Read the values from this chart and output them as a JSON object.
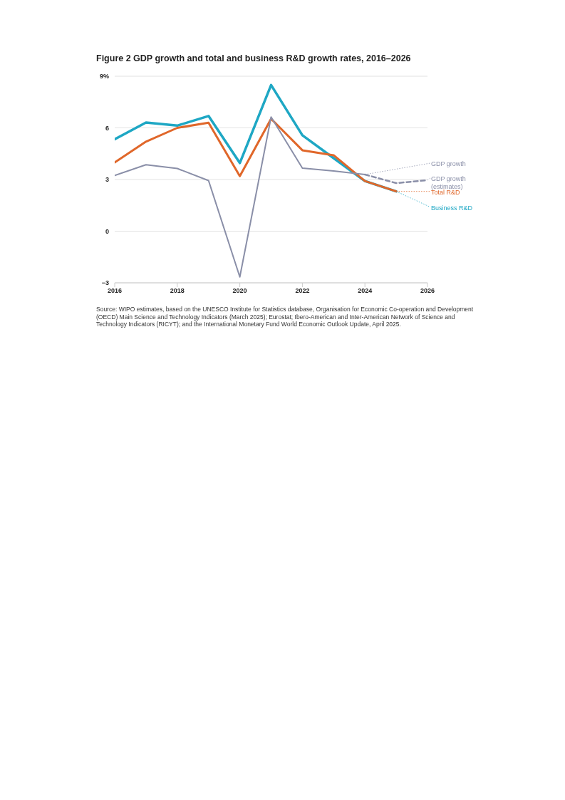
{
  "chart_data": {
    "type": "line",
    "title": "Figure 2 GDP growth and total and business R&D growth rates, 2016–2026",
    "x": [
      2016,
      2017,
      2018,
      2019,
      2020,
      2021,
      2022,
      2023,
      2024,
      2025,
      2026
    ],
    "series": [
      {
        "name": "GDP growth",
        "color": "#8a8fa8",
        "values": [
          3.24,
          3.86,
          3.64,
          2.94,
          -2.66,
          6.63,
          3.66,
          3.5,
          3.29,
          null,
          null
        ]
      },
      {
        "name": "GDP growth (estimates)",
        "color": "#8a8fa8",
        "line_style": "dashed",
        "values": [
          null,
          null,
          null,
          null,
          null,
          null,
          null,
          null,
          3.29,
          2.79,
          2.96
        ]
      },
      {
        "name": "Total R&D",
        "color": "#e0672a",
        "values": [
          3.99,
          5.2,
          6.0,
          6.3,
          3.2,
          6.53,
          4.7,
          4.41,
          2.91,
          2.31,
          null
        ]
      },
      {
        "name": "Business R&D",
        "color": "#1ea7c4",
        "values": [
          5.34,
          6.31,
          6.13,
          6.69,
          3.96,
          8.49,
          5.57,
          4.24,
          2.91,
          2.31,
          null
        ]
      }
    ],
    "xlim": [
      2016,
      2026
    ],
    "xticks": [
      2016,
      2018,
      2020,
      2022,
      2024,
      2026
    ],
    "ylim": [
      -3,
      9
    ],
    "yticks": [
      {
        "value": -3,
        "label": "−3"
      },
      0,
      3,
      6,
      {
        "value": 9,
        "label": "9%"
      }
    ],
    "grid": "y",
    "marker": "none",
    "line_style": "solid",
    "annotations": [
      "Source: WIPO estimates, based on the UNESCO Institute for Statistics database, Organisation for Economic Co-operation and Development (OECD) Main Science and Technology Indicators (March 2025); Eurostat; Ibero-American and Inter-American Network of Science and Technology Indicators (RICYT); and the International Monetary Fund World Economic Outlook Update, April 2025."
    ]
  }
}
